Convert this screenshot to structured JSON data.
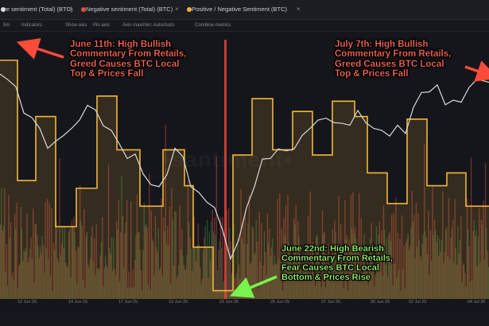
{
  "tabs": [
    {
      "label": "ve sentiment (Total) (BTC)",
      "color": "#d7dbe5"
    },
    {
      "label": "Negative sentiment (Total) (BTC)",
      "color": "#ef4b43"
    },
    {
      "label": "Positive / Negative Sentiment (BTC)",
      "color": "#f2b63b"
    }
  ],
  "toolbar": {
    "sm_label": "5m",
    "indicators_label": "Indicators",
    "show_axis_label": "Show axis",
    "pin_axis_label": "Pin axis",
    "axis_max_label": "Axis max/min: Auto/Auto",
    "combine_label": "Combine metrics"
  },
  "colors": {
    "price": "#d7d9de",
    "ratio": "#f2b63b",
    "positive": "#3d8f45",
    "negative": "#b3473d",
    "background": "#15161b"
  },
  "annotations": [
    {
      "id": "june11",
      "lines": [
        "June 11th: High Bullish",
        "Commentary From Retails,",
        "Greed Causes BTC Local",
        "Top & Prices Fall"
      ]
    },
    {
      "id": "july7",
      "lines": [
        "July 7th: High Bullish",
        "Commentary From Retails,",
        "Greed Causes BTC Local",
        "Top & Prices Fall"
      ]
    },
    {
      "id": "june22",
      "lines": [
        "June 22nd: High Bearish",
        "Commentary From Retails,",
        "Fear Causes BTC Local",
        "Bottom & Prices Rise"
      ]
    }
  ],
  "chart_data": {
    "type": "line",
    "x_ticks": [
      "12 Jun 25",
      "14 Jun 25",
      "17 Jun 25",
      "19 Jun 25",
      "22 Jun 25",
      "25 Jun 25",
      "27 Jun 25",
      "30 Jun 25",
      "02 Jul 25",
      "04 Jul 25"
    ],
    "ratio_series": {
      "name": "Positive / Negative Sentiment (BTC)",
      "segments": [
        {
          "from": 0,
          "to": 22,
          "value": 0.92
        },
        {
          "from": 22,
          "to": 45,
          "value": 0.45
        },
        {
          "from": 45,
          "to": 70,
          "value": 0.7
        },
        {
          "from": 70,
          "to": 96,
          "value": 0.27
        },
        {
          "from": 96,
          "to": 122,
          "value": 0.42
        },
        {
          "from": 122,
          "to": 147,
          "value": 0.78
        },
        {
          "from": 147,
          "to": 176,
          "value": 0.57
        },
        {
          "from": 176,
          "to": 205,
          "value": 0.35
        },
        {
          "from": 205,
          "to": 232,
          "value": 0.57
        },
        {
          "from": 232,
          "to": 243,
          "value": 0.43
        },
        {
          "from": 243,
          "to": 268,
          "value": 0.19
        },
        {
          "from": 268,
          "to": 293,
          "value": 0.02
        },
        {
          "from": 293,
          "to": 317,
          "value": 0.55
        },
        {
          "from": 317,
          "to": 343,
          "value": 0.77
        },
        {
          "from": 343,
          "to": 368,
          "value": 0.57
        },
        {
          "from": 368,
          "to": 393,
          "value": 0.72
        },
        {
          "from": 393,
          "to": 418,
          "value": 0.55
        },
        {
          "from": 418,
          "to": 446,
          "value": 0.76
        },
        {
          "from": 446,
          "to": 462,
          "value": 0.7
        },
        {
          "from": 462,
          "to": 487,
          "value": 0.48
        },
        {
          "from": 487,
          "to": 512,
          "value": 0.36
        },
        {
          "from": 512,
          "to": 537,
          "value": 0.69
        },
        {
          "from": 537,
          "to": 562,
          "value": 0.43
        },
        {
          "from": 562,
          "to": 586,
          "value": 0.48
        },
        {
          "from": 586,
          "to": 615,
          "value": 0.35
        }
      ]
    },
    "price_series": {
      "name": "Price (BTC)",
      "x": [
        0,
        10,
        20,
        30,
        40,
        50,
        60,
        70,
        80,
        90,
        100,
        110,
        120,
        130,
        140,
        150,
        160,
        170,
        180,
        190,
        200,
        210,
        220,
        230,
        240,
        250,
        260,
        270,
        280,
        290,
        300,
        310,
        320,
        330,
        340,
        350,
        360,
        370,
        380,
        390,
        400,
        410,
        420,
        430,
        440,
        450,
        460,
        470,
        480,
        490,
        500,
        510,
        520,
        530,
        540,
        550,
        560,
        570,
        580,
        590,
        600,
        615
      ],
      "y": [
        0.86,
        0.85,
        0.81,
        0.72,
        0.69,
        0.66,
        0.57,
        0.61,
        0.62,
        0.66,
        0.68,
        0.75,
        0.72,
        0.67,
        0.64,
        0.6,
        0.53,
        0.56,
        0.47,
        0.44,
        0.42,
        0.48,
        0.57,
        0.55,
        0.42,
        0.41,
        0.36,
        0.35,
        0.25,
        0.15,
        0.21,
        0.35,
        0.42,
        0.54,
        0.53,
        0.58,
        0.56,
        0.58,
        0.62,
        0.66,
        0.68,
        0.7,
        0.67,
        0.68,
        0.66,
        0.73,
        0.67,
        0.66,
        0.64,
        0.63,
        0.66,
        0.64,
        0.73,
        0.8,
        0.79,
        0.83,
        0.74,
        0.77,
        0.75,
        0.82,
        0.84,
        0.84
      ]
    }
  }
}
